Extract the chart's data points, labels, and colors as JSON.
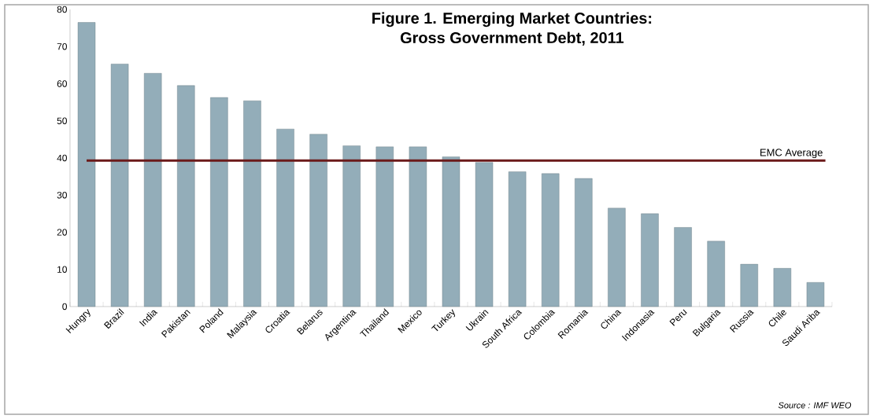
{
  "chart_data": {
    "type": "bar",
    "title": "Figure 1. Emerging Market Countries:\nGross Government  Debt,  2011",
    "categories": [
      "Hungry",
      "Brazil",
      "India",
      "Pakistan",
      "Poland",
      "Malaysia",
      "Croatia",
      "Belarus",
      "Argentina",
      "Thailand",
      "Mexico",
      "Turkey",
      "Ukrain",
      "South Africa",
      "Colombia",
      "Romania",
      "China",
      "Indonasia",
      "Peru",
      "Bulgaria",
      "Russia",
      "Chile",
      "Saudi Ariba"
    ],
    "values": [
      76.5,
      65.3,
      62.8,
      59.5,
      56.3,
      55.4,
      47.8,
      46.4,
      43.3,
      43.0,
      43.0,
      40.3,
      38.8,
      36.3,
      35.8,
      34.5,
      26.5,
      25.0,
      21.3,
      17.6,
      11.4,
      10.3,
      6.5
    ],
    "color": "#93adb9",
    "ylim": [
      0,
      80
    ],
    "yticks": [
      0,
      10,
      20,
      30,
      40,
      50,
      60,
      70,
      80
    ],
    "ref_lines": [
      {
        "axis": "y",
        "value": 39.3,
        "label": "EMC Average",
        "color": "#6b1a1a"
      }
    ],
    "annotations": [
      "Source : IMF WEO"
    ]
  }
}
